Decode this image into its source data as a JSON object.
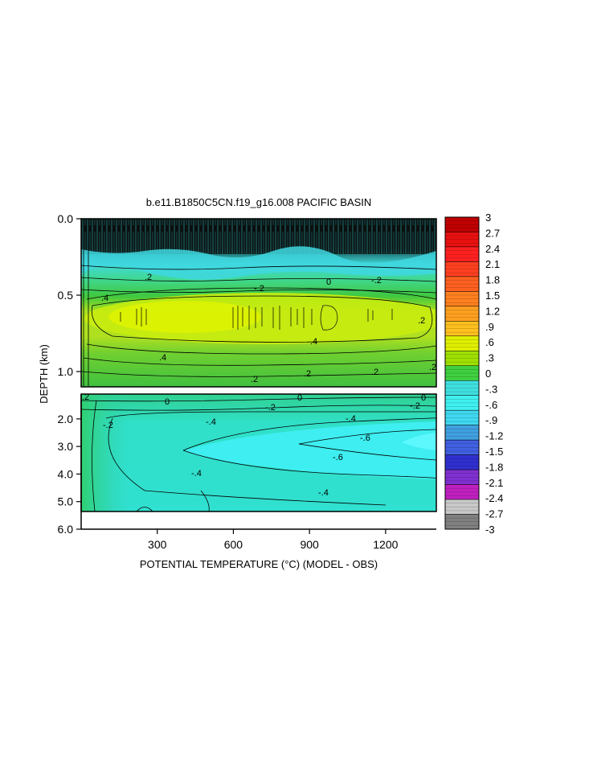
{
  "chart_data": {
    "type": "heatmap",
    "title": "b.e11.B1850C5CN.f19_g16.008 PACIFIC BASIN",
    "xlabel": "POTENTIAL TEMPERATURE (°C) (MODEL - OBS)",
    "ylabel": "DEPTH (km)",
    "xlim": [
      0,
      1400
    ],
    "x_ticks": [
      300,
      600,
      900,
      1200
    ],
    "x_tick_labels": [
      "300",
      "600",
      "900",
      "1200"
    ],
    "upper_panel": {
      "ylim": [
        0.0,
        1.1
      ],
      "y_ticks": [
        0.0,
        0.5,
        1.0
      ],
      "y_tick_labels": [
        "0.0",
        "0.5",
        "1.0"
      ]
    },
    "lower_panel": {
      "ylim": [
        1.1,
        6.0
      ],
      "y_ticks": [
        2.0,
        3.0,
        4.0,
        5.0,
        6.0
      ],
      "y_tick_labels": [
        "2.0",
        "3.0",
        "4.0",
        "5.0",
        "6.0"
      ]
    },
    "colorbar": {
      "min": -3,
      "max": 3,
      "labels": [
        "3",
        "2.7",
        "2.4",
        "2.1",
        "1.8",
        "1.5",
        "1.2",
        ".9",
        ".6",
        ".3",
        "0",
        "-.3",
        "-.6",
        "-.9",
        "-1.2",
        "-1.5",
        "-1.8",
        "-2.1",
        "-2.4",
        "-2.7",
        "-3"
      ],
      "colors": [
        "#c00000",
        "#e81010",
        "#ff2020",
        "#ff4020",
        "#ff6020",
        "#ff8020",
        "#ffa020",
        "#ffc020",
        "#e0f000",
        "#a0e000",
        "#40d040",
        "#40e0e0",
        "#40f0f0",
        "#40d8f0",
        "#40a0e0",
        "#4060e0",
        "#3030d0",
        "#8030d0",
        "#c020c0",
        "#c8c8c8",
        "#808080"
      ]
    },
    "contour_labels_upper": [
      ".4",
      ".2",
      "0",
      "-.2",
      ".4",
      ".2",
      "-.2",
      ".4",
      ".2",
      ".2",
      ".2",
      ".2"
    ],
    "contour_labels_lower": [
      "0",
      "-.2",
      "0",
      "-.2",
      "0",
      "-.2",
      "-.4",
      "-.4",
      ".2",
      "-.6",
      "-.6",
      "-.4",
      "-.4"
    ]
  }
}
